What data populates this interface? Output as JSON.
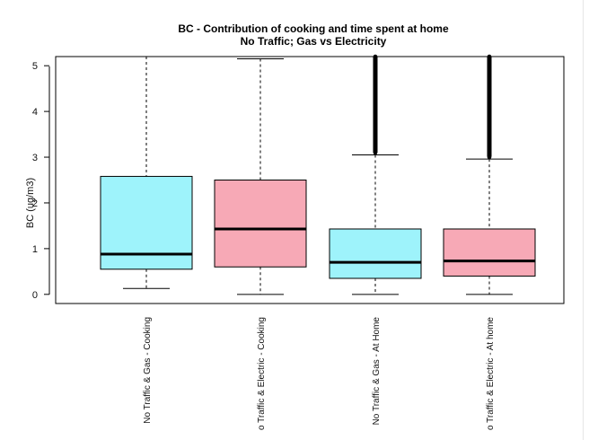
{
  "chart_data": {
    "type": "box",
    "title": "BC - Contribution of cooking and time spent at home",
    "subtitle": "No Traffic; Gas vs Electricity",
    "xlabel": "",
    "ylabel": "BC (ug/m3)",
    "ylim": [
      -0.2,
      5.2
    ],
    "yticks": [
      0,
      1,
      2,
      3,
      4,
      5
    ],
    "grid": false,
    "legend": "none",
    "categories": [
      "No Traffic & Gas - Cooking",
      "o Traffic & Electric - Cooking",
      "No Traffic & Gas - At Home",
      "o Traffic & Electric - At home"
    ],
    "boxes": [
      {
        "category": "No Traffic & Gas - Cooking",
        "whisker_low": 0.13,
        "q1": 0.55,
        "median": 0.88,
        "q3": 2.58,
        "whisker_high": 5.2,
        "outliers": []
      },
      {
        "category": "o Traffic & Electric - Cooking",
        "whisker_low": 0.0,
        "q1": 0.6,
        "median": 1.43,
        "q3": 2.5,
        "whisker_high": 5.15,
        "outliers": []
      },
      {
        "category": "No Traffic & Gas - At Home",
        "whisker_low": 0.0,
        "q1": 0.35,
        "median": 0.7,
        "q3": 1.43,
        "whisker_high": 3.05,
        "outliers": [
          3.1,
          3.2,
          3.3,
          3.4,
          3.5,
          3.6,
          3.7,
          3.8,
          3.9,
          4.0,
          4.1,
          4.2,
          4.3,
          4.4,
          4.5,
          4.6,
          4.7,
          4.8,
          4.9,
          5.0,
          5.1,
          5.2
        ]
      },
      {
        "category": "o Traffic & Electric - At home",
        "whisker_low": 0.0,
        "q1": 0.4,
        "median": 0.73,
        "q3": 1.43,
        "whisker_high": 2.96,
        "outliers": [
          3.0,
          3.1,
          3.2,
          3.3,
          3.4,
          3.5,
          3.6,
          3.7,
          3.8,
          3.9,
          4.0,
          4.1,
          4.2,
          4.3,
          4.4,
          4.5,
          4.6,
          4.7,
          4.8,
          4.9,
          5.0,
          5.1,
          5.2
        ]
      }
    ],
    "colors": [
      "#9ef3fb",
      "#f7a9b6",
      "#9ef3fb",
      "#f7a9b6"
    ]
  }
}
